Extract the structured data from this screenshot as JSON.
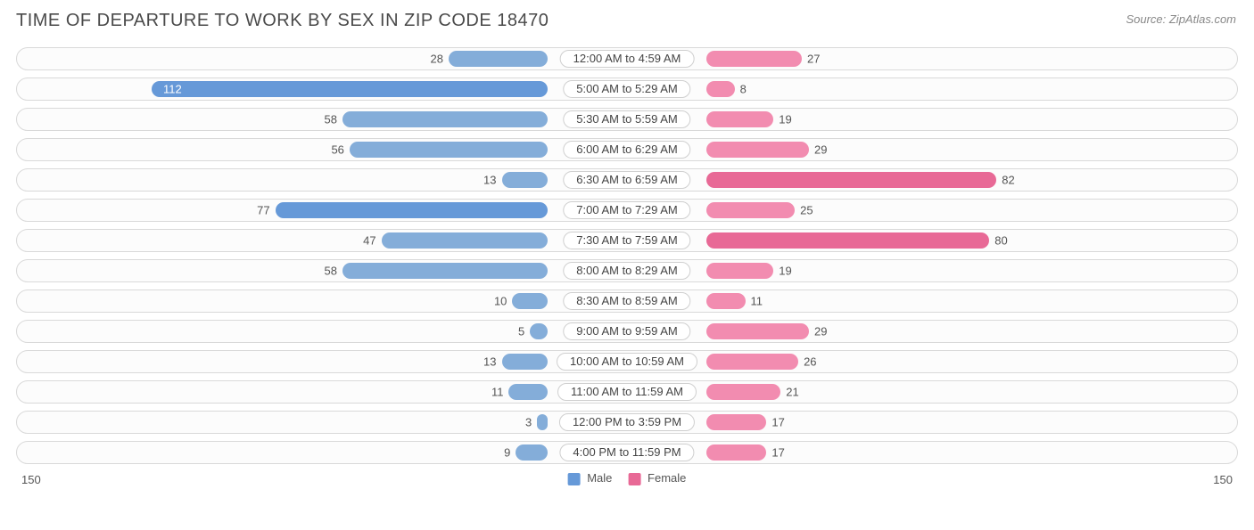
{
  "title": "TIME OF DEPARTURE TO WORK BY SEX IN ZIP CODE 18470",
  "source": "Source: ZipAtlas.com",
  "chart": {
    "type": "diverging-bar",
    "max": 150,
    "half_pct": 43.5,
    "male_color": "#6699d8",
    "female_color": "#e86996",
    "male_color_light": "#84add9",
    "female_color_light": "#f28cb0",
    "track_bg": "#fcfcfc",
    "track_border": "#d9d9d9",
    "label_border": "#cfcfcf",
    "text_color": "#555555",
    "rows": [
      {
        "label": "12:00 AM to 4:59 AM",
        "male": 28,
        "female": 27,
        "m_light": true,
        "f_light": true
      },
      {
        "label": "5:00 AM to 5:29 AM",
        "male": 112,
        "female": 8,
        "m_light": false,
        "f_light": true,
        "m_inside": true
      },
      {
        "label": "5:30 AM to 5:59 AM",
        "male": 58,
        "female": 19,
        "m_light": true,
        "f_light": true
      },
      {
        "label": "6:00 AM to 6:29 AM",
        "male": 56,
        "female": 29,
        "m_light": true,
        "f_light": true
      },
      {
        "label": "6:30 AM to 6:59 AM",
        "male": 13,
        "female": 82,
        "m_light": true,
        "f_light": false
      },
      {
        "label": "7:00 AM to 7:29 AM",
        "male": 77,
        "female": 25,
        "m_light": false,
        "f_light": true
      },
      {
        "label": "7:30 AM to 7:59 AM",
        "male": 47,
        "female": 80,
        "m_light": true,
        "f_light": false
      },
      {
        "label": "8:00 AM to 8:29 AM",
        "male": 58,
        "female": 19,
        "m_light": true,
        "f_light": true
      },
      {
        "label": "8:30 AM to 8:59 AM",
        "male": 10,
        "female": 11,
        "m_light": true,
        "f_light": true
      },
      {
        "label": "9:00 AM to 9:59 AM",
        "male": 5,
        "female": 29,
        "m_light": true,
        "f_light": true
      },
      {
        "label": "10:00 AM to 10:59 AM",
        "male": 13,
        "female": 26,
        "m_light": true,
        "f_light": true
      },
      {
        "label": "11:00 AM to 11:59 AM",
        "male": 11,
        "female": 21,
        "m_light": true,
        "f_light": true
      },
      {
        "label": "12:00 PM to 3:59 PM",
        "male": 3,
        "female": 17,
        "m_light": true,
        "f_light": true
      },
      {
        "label": "4:00 PM to 11:59 PM",
        "male": 9,
        "female": 17,
        "m_light": true,
        "f_light": true
      }
    ]
  },
  "legend": {
    "male": "Male",
    "female": "Female"
  },
  "axis": {
    "left": "150",
    "right": "150"
  }
}
